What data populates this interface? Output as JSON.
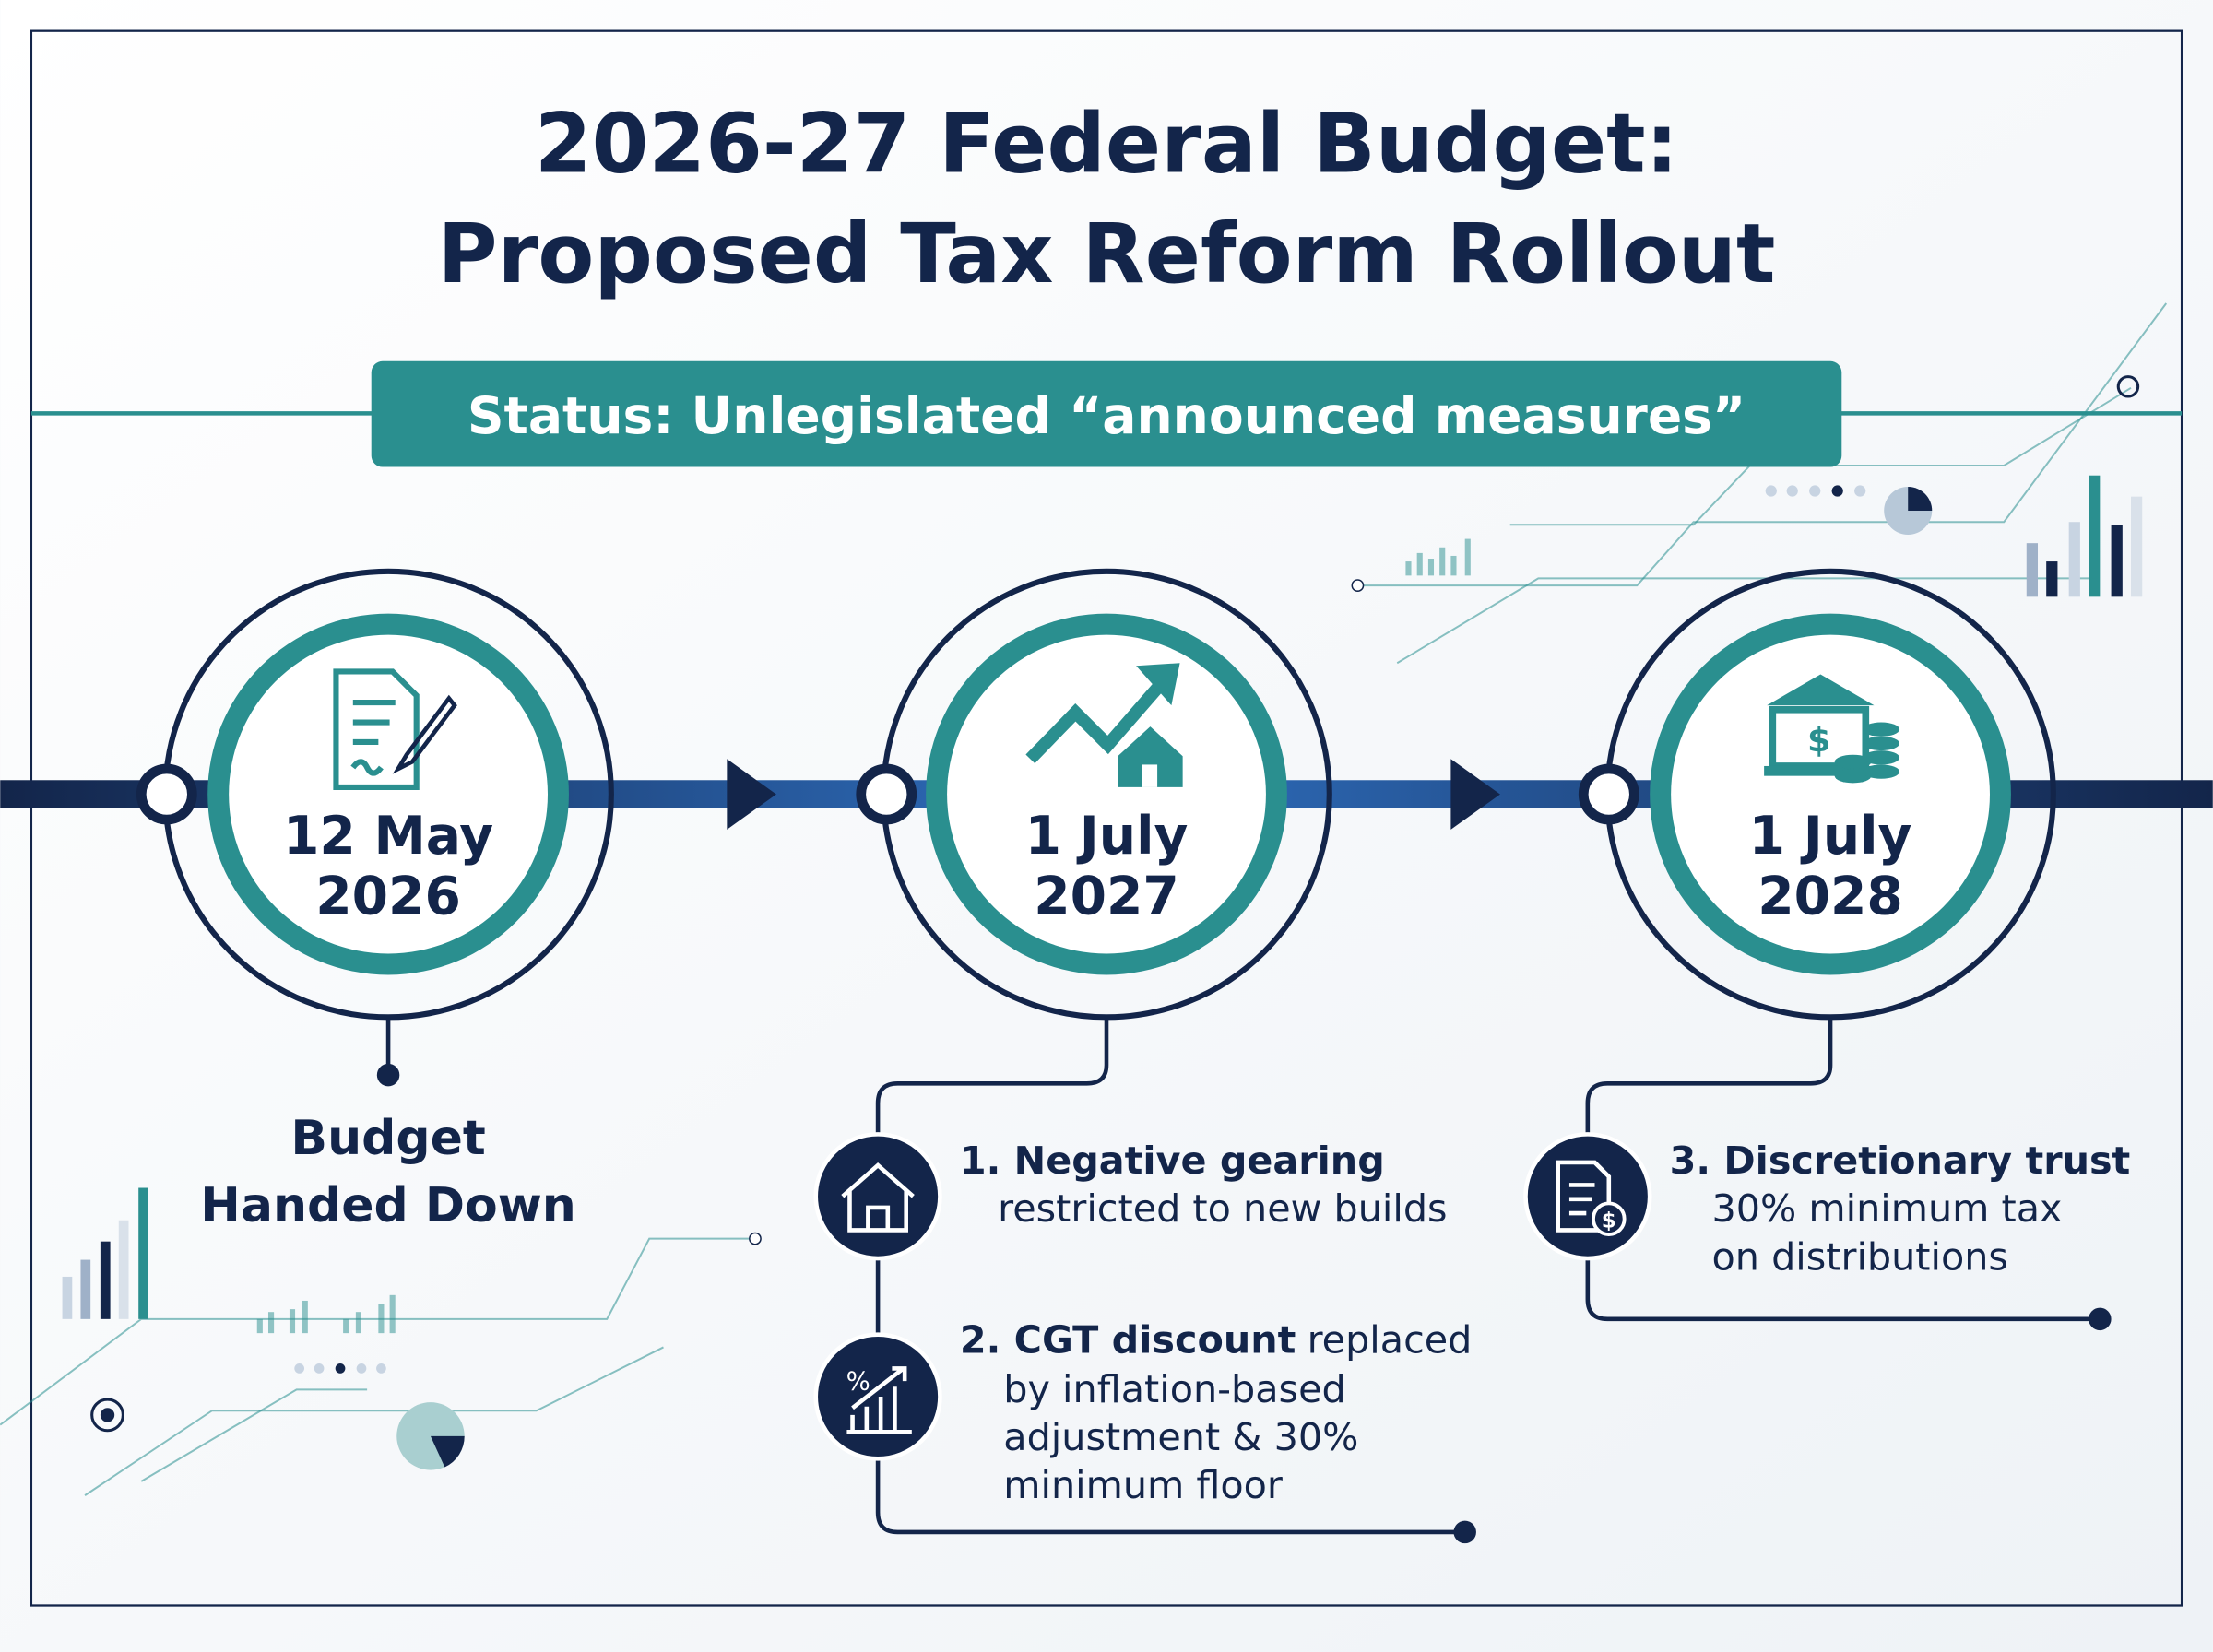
{
  "header": {
    "title_lines": [
      "2026-27 Federal Budget:",
      "Proposed Tax Reform Rollout"
    ],
    "status": "Status: Unlegislated “announced measures”"
  },
  "milestones": [
    {
      "date_lines": [
        "12 May",
        "2026"
      ],
      "label_lines": [
        "Budget",
        "Handed Down"
      ]
    },
    {
      "date_lines": [
        "1 July",
        "2027"
      ],
      "items": [
        {
          "heading": "1. Negative gearing",
          "lines": [
            "restricted to new builds"
          ]
        },
        {
          "heading": "2. CGT discount",
          "lines": [
            "replaced",
            "by inflation-based",
            "adjustment & 30%",
            "minimum floor"
          ]
        }
      ]
    },
    {
      "date_lines": [
        "1 July",
        "2028"
      ],
      "items": [
        {
          "heading": "3. Discretionary trust",
          "lines": [
            "30% minimum tax",
            "on distributions"
          ]
        }
      ]
    }
  ]
}
